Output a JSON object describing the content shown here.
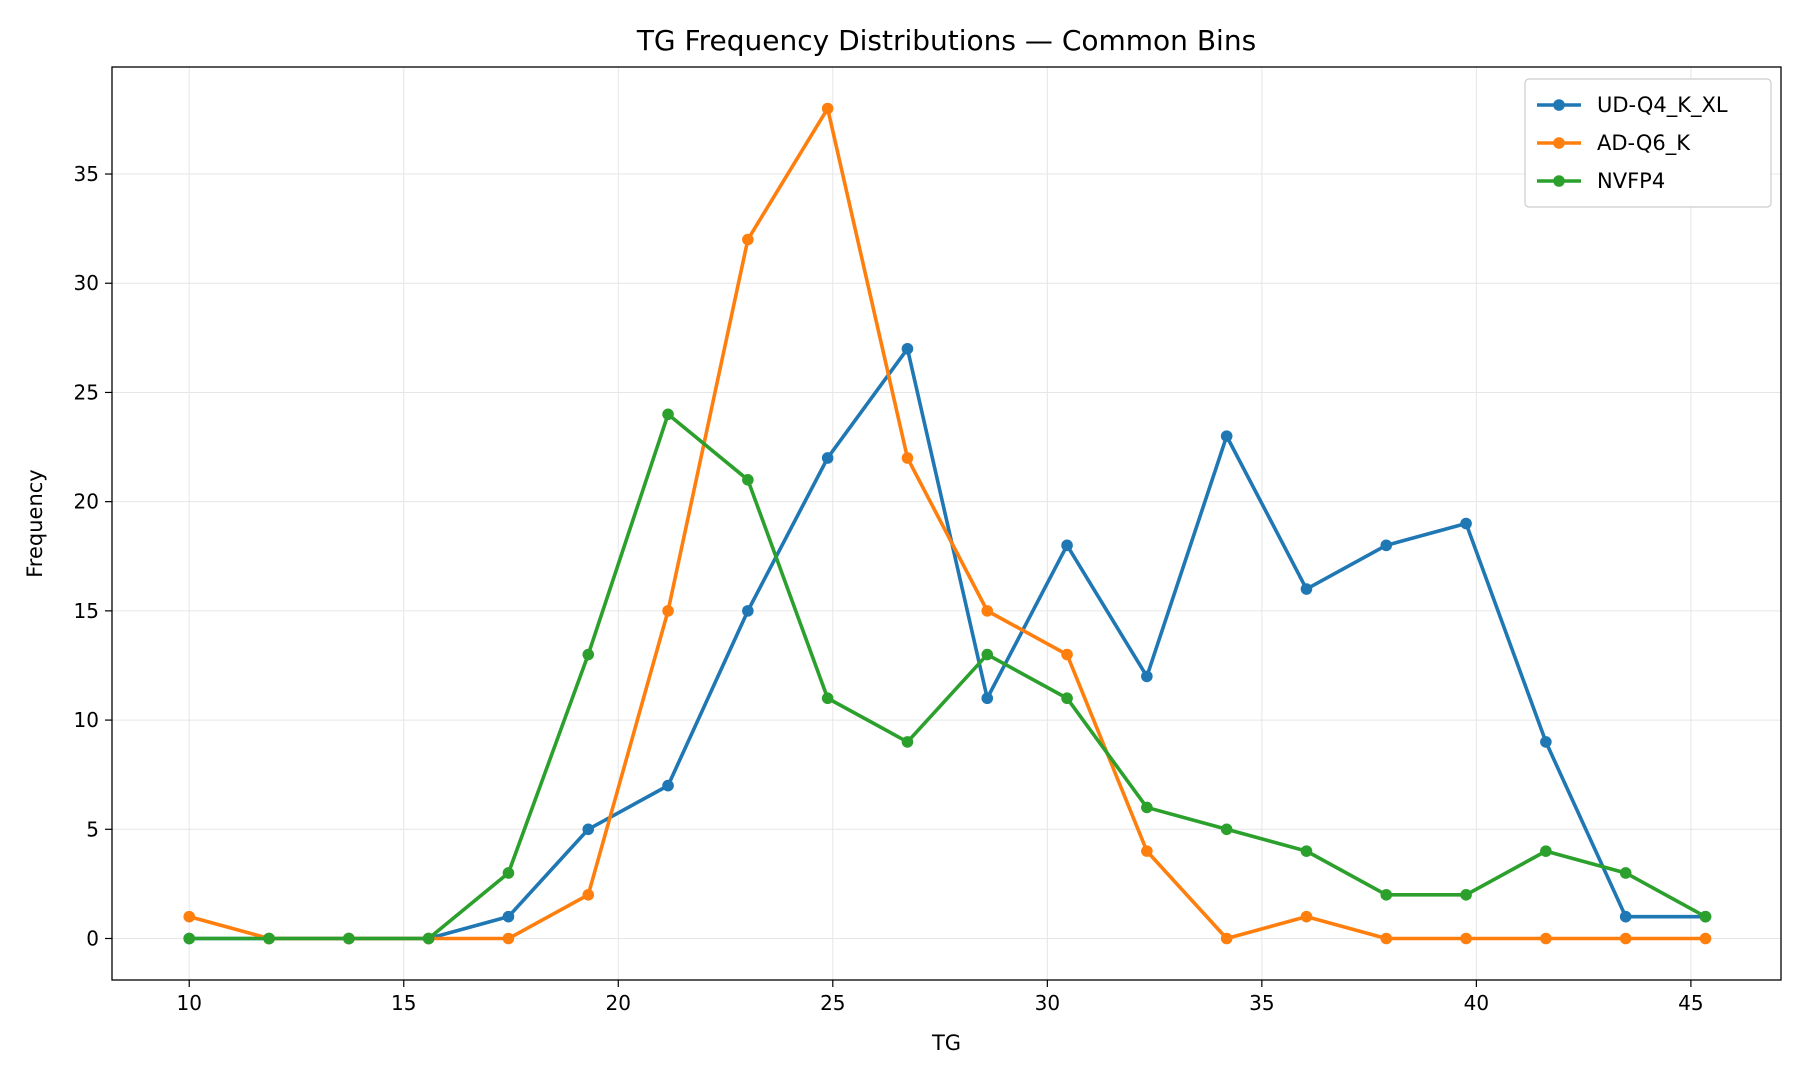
{
  "chart_data": {
    "type": "line",
    "title": "TG Frequency Distributions — Common Bins",
    "xlabel": "TG",
    "ylabel": "Frequency",
    "xlim": [
      8.2,
      47.1
    ],
    "ylim": [
      -1.9,
      39.9
    ],
    "xticks": [
      10,
      15,
      20,
      25,
      30,
      35,
      40,
      45
    ],
    "yticks": [
      0,
      5,
      10,
      15,
      20,
      25,
      30,
      35
    ],
    "grid": true,
    "legend_position": "top-right",
    "x": [
      10.0,
      11.86,
      13.72,
      15.58,
      17.44,
      19.3,
      21.16,
      23.02,
      24.88,
      26.74,
      28.6,
      30.46,
      32.32,
      34.18,
      36.04,
      37.9,
      39.76,
      41.62,
      43.48,
      45.34
    ],
    "series": [
      {
        "name": "UD-Q4_K_XL",
        "color": "#1f77b4",
        "values": [
          0,
          0,
          0,
          0,
          1,
          5,
          7,
          15,
          22,
          27,
          11,
          18,
          12,
          23,
          16,
          18,
          19,
          9,
          1,
          1
        ]
      },
      {
        "name": "AD-Q6_K",
        "color": "#ff7f0e",
        "values": [
          1,
          0,
          0,
          0,
          0,
          2,
          15,
          32,
          38,
          22,
          15,
          13,
          4,
          0,
          1,
          0,
          0,
          0,
          0,
          0
        ]
      },
      {
        "name": "NVFP4",
        "color": "#2ca02c",
        "values": [
          0,
          0,
          0,
          0,
          3,
          13,
          24,
          21,
          11,
          9,
          13,
          11,
          6,
          5,
          4,
          2,
          2,
          4,
          3,
          1
        ]
      }
    ]
  }
}
